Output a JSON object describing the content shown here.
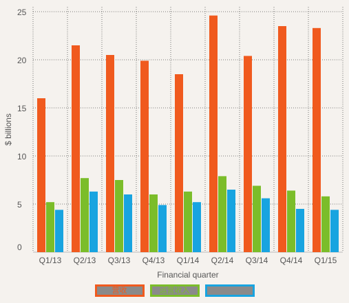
{
  "chart_data": {
    "type": "bar",
    "title": "",
    "xlabel": "Financial quarter",
    "ylabel": "$ billions",
    "ylim": [
      0,
      25.5
    ],
    "yticks": [
      0,
      5,
      10,
      15,
      20,
      25
    ],
    "grid": true,
    "legend_position": "bottom",
    "categories": [
      "Q1/13",
      "Q2/13",
      "Q3/13",
      "Q4/13",
      "Q1/14",
      "Q2/14",
      "Q3/14",
      "Q4/14",
      "Q1/15"
    ],
    "series": [
      {
        "name": "营收",
        "color": "#f05a1e",
        "values": [
          16.0,
          21.5,
          20.5,
          19.9,
          18.5,
          24.6,
          20.4,
          23.5,
          23.3
        ]
      },
      {
        "name": "运营收入",
        "color": "#7bbd2a",
        "values": [
          5.2,
          7.7,
          7.5,
          6.0,
          6.3,
          7.9,
          6.9,
          6.4,
          5.8
        ]
      },
      {
        "name": "",
        "color": "#18a4e0",
        "values": [
          4.4,
          6.3,
          6.0,
          4.9,
          5.2,
          6.5,
          5.6,
          4.5,
          4.4
        ]
      }
    ]
  }
}
